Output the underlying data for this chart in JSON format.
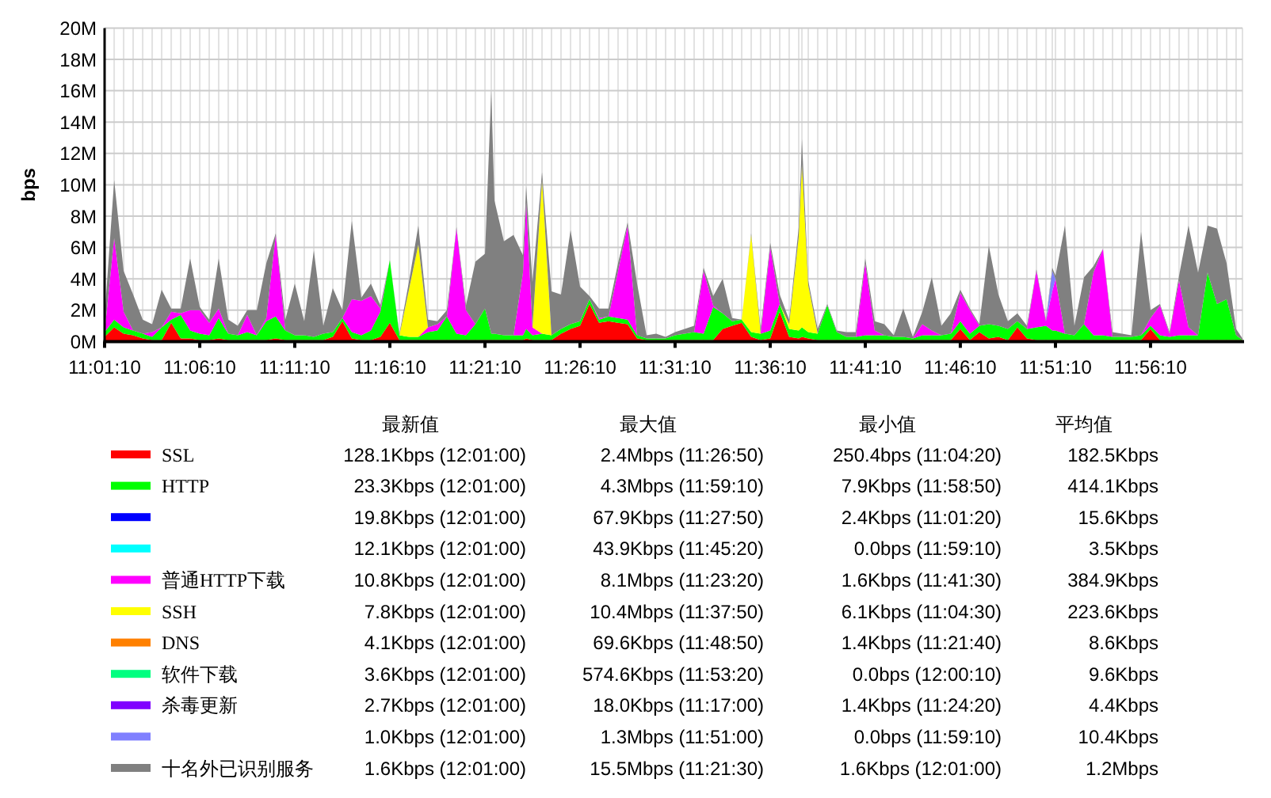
{
  "chart_data": {
    "type": "area",
    "stacked": true,
    "ylabel": "bps",
    "grid": true,
    "legend": "bottom",
    "xlim": [
      11.0194,
      12.0167
    ],
    "xticks": [
      {
        "value": 11.0194,
        "label": "11:01:10"
      },
      {
        "value": 11.1028,
        "label": "11:06:10"
      },
      {
        "value": 11.1861,
        "label": "11:11:10"
      },
      {
        "value": 11.2694,
        "label": "11:16:10"
      },
      {
        "value": 11.3528,
        "label": "11:21:10"
      },
      {
        "value": 11.4361,
        "label": "11:26:10"
      },
      {
        "value": 11.5194,
        "label": "11:31:10"
      },
      {
        "value": 11.6028,
        "label": "11:36:10"
      },
      {
        "value": 11.6861,
        "label": "11:41:10"
      },
      {
        "value": 11.7694,
        "label": "11:46:10"
      },
      {
        "value": 11.8528,
        "label": "11:51:10"
      },
      {
        "value": 11.9361,
        "label": "11:56:10"
      }
    ],
    "ylim": [
      0,
      20
    ],
    "yticks": [
      {
        "value": 0,
        "label": "0M"
      },
      {
        "value": 2,
        "label": "2M"
      },
      {
        "value": 4,
        "label": "4M"
      },
      {
        "value": 6,
        "label": "6M"
      },
      {
        "value": 8,
        "label": "8M"
      },
      {
        "value": 10,
        "label": "10M"
      },
      {
        "value": 12,
        "label": "12M"
      },
      {
        "value": 14,
        "label": "14M"
      },
      {
        "value": 16,
        "label": "16M"
      },
      {
        "value": 18,
        "label": "18M"
      },
      {
        "value": 20,
        "label": "20M"
      }
    ],
    "x": [
      11.0194,
      11.0278,
      11.0361,
      11.0444,
      11.0528,
      11.0611,
      11.0694,
      11.0778,
      11.0861,
      11.0944,
      11.1028,
      11.1111,
      11.1194,
      11.1278,
      11.1361,
      11.1444,
      11.1528,
      11.1611,
      11.1694,
      11.1778,
      11.1861,
      11.1944,
      11.2028,
      11.2111,
      11.2194,
      11.2278,
      11.2361,
      11.2444,
      11.2528,
      11.2611,
      11.2694,
      11.2778,
      11.2861,
      11.2944,
      11.3028,
      11.3111,
      11.3194,
      11.3278,
      11.3361,
      11.3444,
      11.3528,
      11.3583,
      11.3611,
      11.3694,
      11.3778,
      11.3861,
      11.3889,
      11.3944,
      11.4028,
      11.4111,
      11.4194,
      11.4278,
      11.4361,
      11.4444,
      11.4528,
      11.4611,
      11.4694,
      11.4778,
      11.4861,
      11.4944,
      11.5028,
      11.5111,
      11.5194,
      11.5278,
      11.5361,
      11.5444,
      11.5528,
      11.5611,
      11.5694,
      11.5778,
      11.5861,
      11.5944,
      11.6028,
      11.6111,
      11.6194,
      11.6278,
      11.6306,
      11.6361,
      11.6444,
      11.6528,
      11.6611,
      11.6694,
      11.6778,
      11.6861,
      11.6944,
      11.7028,
      11.7111,
      11.7194,
      11.7278,
      11.7361,
      11.7444,
      11.7528,
      11.7611,
      11.7694,
      11.7778,
      11.7861,
      11.7944,
      11.8028,
      11.8111,
      11.8194,
      11.8278,
      11.8361,
      11.8444,
      11.85,
      11.8528,
      11.8611,
      11.8694,
      11.8778,
      11.8861,
      11.8944,
      11.9028,
      11.9111,
      11.9194,
      11.9278,
      11.9361,
      11.9444,
      11.9528,
      11.9611,
      11.9694,
      11.9778,
      11.9861,
      11.9944,
      12.0028,
      12.0111,
      12.0167
    ],
    "series": [
      {
        "name": "SSL",
        "color": "#ff0000",
        "values": [
          0.3,
          0.9,
          0.5,
          0.4,
          0.2,
          0.1,
          0.1,
          1.2,
          0.2,
          0.2,
          0.1,
          0.1,
          0.2,
          0.1,
          0.1,
          0.1,
          0.1,
          0.1,
          0.2,
          0.1,
          0.1,
          0.1,
          0.1,
          0.1,
          0.3,
          1.3,
          0.2,
          0.1,
          0.1,
          0.3,
          1.2,
          0.1,
          0.1,
          0.1,
          0.1,
          0.1,
          0.1,
          0.1,
          0.1,
          0.1,
          0.1,
          0.1,
          0.1,
          0.1,
          0.1,
          0.1,
          0.2,
          0.1,
          0.1,
          0.1,
          0.5,
          0.8,
          1.0,
          2.4,
          1.2,
          1.3,
          1.2,
          1.1,
          0.2,
          0.1,
          0.1,
          0.1,
          0.1,
          0.1,
          0.1,
          0.1,
          0.1,
          0.8,
          1.0,
          1.2,
          0.3,
          0.1,
          0.2,
          1.9,
          0.3,
          0.2,
          0.3,
          0.2,
          0.1,
          0.1,
          0.1,
          0.1,
          0.1,
          0.1,
          0.1,
          0.1,
          0.1,
          0.1,
          0.1,
          0.1,
          0.1,
          0.1,
          0.1,
          0.8,
          0.1,
          0.6,
          0.2,
          0.3,
          0.1,
          0.9,
          0.2,
          0.1,
          0.1,
          0.1,
          0.1,
          0.1,
          0.1,
          0.1,
          0.1,
          0.1,
          0.1,
          0.1,
          0.1,
          0.1,
          0.8,
          0.1,
          0.1,
          0.1,
          0.1,
          0.1,
          0.1,
          0.1,
          0.1,
          0.1,
          0.1
        ]
      },
      {
        "name": "HTTP",
        "color": "#00ff00",
        "values": [
          0.3,
          0.5,
          0.4,
          0.3,
          0.3,
          0.2,
          0.8,
          0.2,
          1.5,
          0.5,
          0.4,
          0.3,
          1.3,
          0.4,
          0.3,
          0.5,
          0.3,
          1.2,
          1.4,
          0.6,
          0.3,
          0.3,
          0.2,
          0.4,
          0.3,
          0.2,
          0.4,
          0.3,
          0.6,
          1.6,
          4.0,
          0.3,
          0.2,
          0.2,
          0.5,
          0.6,
          1.5,
          0.4,
          0.3,
          1.0,
          2.0,
          0.4,
          0.4,
          0.3,
          0.3,
          0.3,
          0.6,
          0.3,
          0.4,
          0.3,
          0.3,
          0.3,
          0.3,
          0.3,
          0.2,
          0.3,
          0.3,
          0.3,
          0.2,
          0.1,
          0.1,
          0.1,
          0.3,
          0.4,
          0.5,
          0.4,
          2.1,
          1.0,
          0.3,
          0.2,
          0.3,
          0.4,
          0.5,
          0.5,
          0.5,
          0.5,
          0.6,
          0.4,
          0.4,
          2.2,
          0.5,
          0.2,
          0.2,
          0.3,
          0.3,
          0.3,
          0.2,
          0.2,
          0.1,
          0.3,
          0.3,
          0.3,
          0.4,
          0.5,
          0.4,
          0.4,
          0.9,
          0.7,
          0.7,
          0.4,
          0.6,
          0.8,
          0.9,
          0.6,
          0.6,
          0.4,
          0.3,
          1.0,
          0.3,
          0.3,
          0.2,
          0.2,
          0.2,
          0.3,
          0.2,
          0.3,
          0.2,
          0.3,
          0.3,
          0.3,
          4.3,
          2.3,
          2.6,
          0.3,
          0
        ]
      },
      {
        "color": "#0000ff",
        "values": [
          null,
          null,
          null,
          null,
          null,
          null,
          null,
          null,
          null,
          null,
          null,
          null,
          null,
          null,
          null,
          null,
          null,
          null,
          null,
          null,
          null,
          null,
          null,
          null,
          null,
          null,
          null,
          null,
          null,
          null,
          null,
          null,
          null,
          null,
          null,
          null,
          null,
          null,
          null,
          null,
          null,
          null,
          null,
          null,
          null,
          null,
          null,
          null,
          null,
          null,
          null,
          null,
          null,
          null,
          null,
          null,
          null,
          null,
          null,
          null,
          null,
          null,
          null,
          null,
          null,
          null,
          null,
          null,
          null,
          null,
          null,
          null,
          null,
          null,
          null,
          null,
          null,
          null,
          null,
          null,
          null,
          null,
          null,
          null,
          null,
          null,
          null,
          null,
          null,
          null,
          null,
          null,
          null,
          null,
          null,
          null,
          null,
          null,
          null,
          null,
          null,
          null,
          null,
          null,
          null,
          null,
          null,
          null,
          null,
          null,
          null,
          null,
          null,
          null,
          null,
          null,
          null,
          null,
          null,
          null,
          null,
          null,
          null,
          null,
          null
        ]
      },
      {
        "color": "#00ffff",
        "values": [
          null,
          null,
          null,
          null,
          null,
          null,
          null,
          null,
          null,
          null,
          null,
          null,
          null,
          null,
          null,
          null,
          null,
          null,
          null,
          null,
          null,
          null,
          null,
          null,
          null,
          null,
          null,
          null,
          null,
          null,
          null,
          null,
          null,
          null,
          null,
          null,
          null,
          null,
          null,
          null,
          null,
          null,
          null,
          null,
          null,
          null,
          null,
          null,
          null,
          null,
          null,
          null,
          null,
          null,
          null,
          null,
          null,
          null,
          null,
          null,
          null,
          null,
          null,
          null,
          null,
          null,
          null,
          null,
          null,
          null,
          null,
          null,
          null,
          null,
          null,
          null,
          null,
          null,
          null,
          null,
          null,
          null,
          null,
          null,
          null,
          null,
          null,
          null,
          null,
          null,
          null,
          null,
          null,
          null,
          null,
          null,
          null,
          null,
          null,
          null,
          null,
          null,
          null,
          null,
          null,
          null,
          null,
          null,
          null,
          null,
          null,
          null,
          null,
          null,
          null,
          null,
          null,
          null,
          null,
          null,
          null,
          null,
          null,
          null,
          null
        ]
      },
      {
        "name": "普通HTTP下载",
        "color": "#ff00ff",
        "values": [
          0,
          5.2,
          1.0,
          0,
          0,
          0.3,
          0,
          0.5,
          0.1,
          1.3,
          1.5,
          0.8,
          0.6,
          0,
          0,
          1.1,
          0,
          0.2,
          5.2,
          0,
          0,
          0,
          0,
          0,
          0,
          0,
          2.1,
          2.2,
          2.2,
          0.2,
          0,
          0,
          0,
          0,
          0.3,
          0.4,
          0,
          6.7,
          1.6,
          0,
          0,
          0,
          0,
          0,
          0,
          4.0,
          8.1,
          0.5,
          0,
          0,
          0,
          0,
          0,
          0,
          0.1,
          0,
          3.0,
          6.0,
          0,
          0,
          0,
          0,
          0,
          0,
          0,
          4.0,
          0.1,
          0,
          0,
          0,
          0,
          0,
          5.3,
          0,
          0,
          0,
          0,
          0,
          0,
          0,
          0,
          0,
          0,
          4.6,
          0.3,
          0,
          0,
          0,
          0,
          0.7,
          0.3,
          0,
          0,
          1.8,
          1.5,
          0,
          0,
          0,
          0,
          0,
          0,
          3.6,
          0.3,
          2.5,
          3.3,
          0,
          0,
          0,
          4.0,
          5.5,
          0,
          0,
          0,
          0,
          0.5,
          1.9,
          0.2,
          3.5,
          0.5,
          0,
          0,
          0,
          0,
          0,
          0
        ]
      },
      {
        "name": "SSH",
        "color": "#ffff00",
        "values": [
          0,
          0,
          0,
          0,
          0,
          0,
          0,
          0,
          0,
          0,
          0,
          0,
          0,
          0,
          0,
          0,
          0,
          0,
          0,
          0,
          0,
          0,
          0,
          0,
          0,
          0,
          0,
          0,
          0,
          0,
          0,
          0,
          3.0,
          5.9,
          0,
          0,
          0,
          0,
          0,
          0,
          0,
          0,
          0,
          0,
          0,
          0,
          0,
          0,
          9.8,
          0,
          0,
          0,
          0,
          0,
          0,
          0,
          0,
          0,
          0,
          0,
          0,
          0,
          0,
          0,
          0,
          0,
          0,
          0,
          0,
          0,
          6.2,
          0,
          0,
          0,
          0.3,
          6.0,
          10.4,
          3.0,
          0,
          0,
          0,
          0,
          0,
          0,
          0,
          0,
          0,
          0,
          0,
          0,
          0,
          0,
          0,
          0,
          0,
          0,
          0,
          0,
          0,
          0,
          0,
          0,
          0,
          0,
          0,
          0,
          0,
          0,
          0,
          0,
          0,
          0,
          0,
          0,
          0,
          0,
          0,
          0,
          0,
          0,
          0,
          0,
          0,
          0,
          0
        ]
      },
      {
        "name": "DNS",
        "color": "#ff8000",
        "values": [
          null,
          null,
          null,
          null,
          null,
          null,
          null,
          null,
          null,
          null,
          null,
          null,
          null,
          null,
          null,
          null,
          null,
          null,
          null,
          null,
          null,
          null,
          null,
          null,
          null,
          null,
          null,
          null,
          null,
          null,
          null,
          null,
          null,
          null,
          null,
          null,
          null,
          null,
          null,
          null,
          null,
          null,
          null,
          null,
          null,
          null,
          null,
          null,
          null,
          null,
          null,
          null,
          null,
          null,
          null,
          null,
          null,
          null,
          null,
          null,
          null,
          null,
          null,
          null,
          null,
          null,
          null,
          null,
          null,
          null,
          null,
          null,
          null,
          null,
          null,
          null,
          null,
          null,
          null,
          null,
          null,
          null,
          null,
          null,
          null,
          null,
          null,
          null,
          null,
          null,
          null,
          null,
          null,
          null,
          null,
          null,
          null,
          null,
          null,
          null,
          null,
          null,
          null,
          null,
          null,
          null,
          null,
          null,
          null,
          null,
          null,
          null,
          null,
          null,
          null,
          null,
          null,
          null,
          null,
          null,
          null,
          null,
          null,
          null,
          null
        ]
      },
      {
        "name": "软件下载",
        "color": "#00ff80",
        "values": [
          null,
          null,
          null,
          null,
          null,
          null,
          null,
          null,
          null,
          null,
          null,
          null,
          null,
          null,
          null,
          null,
          null,
          null,
          null,
          null,
          null,
          null,
          null,
          null,
          null,
          null,
          null,
          null,
          null,
          null,
          null,
          null,
          null,
          null,
          null,
          null,
          null,
          null,
          null,
          null,
          null,
          null,
          null,
          null,
          null,
          null,
          null,
          null,
          null,
          null,
          null,
          null,
          null,
          null,
          null,
          null,
          null,
          null,
          null,
          null,
          null,
          null,
          null,
          null,
          null,
          null,
          null,
          null,
          null,
          null,
          null,
          null,
          null,
          null,
          null,
          null,
          null,
          null,
          null,
          null,
          null,
          null,
          null,
          null,
          null,
          null,
          null,
          null,
          null,
          null,
          null,
          null,
          null,
          null,
          null,
          null,
          null,
          null,
          null,
          null,
          null,
          null,
          null,
          null,
          null,
          null,
          null,
          null,
          null,
          null,
          null,
          null,
          null,
          null,
          null,
          null,
          null,
          null,
          null,
          null,
          null,
          null,
          null,
          null,
          null
        ]
      },
      {
        "name": "杀毒更新",
        "color": "#8000ff",
        "values": [
          null,
          null,
          null,
          null,
          null,
          null,
          null,
          null,
          null,
          null,
          null,
          null,
          null,
          null,
          null,
          null,
          null,
          null,
          null,
          null,
          null,
          null,
          null,
          null,
          null,
          null,
          null,
          null,
          null,
          null,
          null,
          null,
          null,
          null,
          null,
          null,
          null,
          null,
          null,
          null,
          null,
          null,
          null,
          null,
          null,
          null,
          null,
          null,
          null,
          null,
          null,
          null,
          null,
          null,
          null,
          null,
          null,
          null,
          null,
          null,
          null,
          null,
          null,
          null,
          null,
          null,
          null,
          null,
          null,
          null,
          null,
          null,
          null,
          null,
          null,
          null,
          null,
          null,
          null,
          null,
          null,
          null,
          null,
          null,
          null,
          null,
          null,
          null,
          null,
          null,
          null,
          null,
          null,
          null,
          null,
          null,
          null,
          null,
          null,
          null,
          null,
          null,
          null,
          null,
          null,
          null,
          null,
          null,
          null,
          null,
          null,
          null,
          null,
          null,
          null,
          null,
          null,
          null,
          null,
          null,
          null,
          null,
          null,
          null,
          null
        ]
      },
      {
        "color": "#8080ff",
        "values": [
          null,
          null,
          null,
          null,
          null,
          null,
          null,
          null,
          null,
          null,
          null,
          null,
          null,
          null,
          null,
          null,
          null,
          null,
          null,
          null,
          null,
          null,
          null,
          null,
          null,
          null,
          null,
          null,
          null,
          null,
          null,
          null,
          null,
          null,
          null,
          null,
          null,
          null,
          null,
          null,
          null,
          null,
          null,
          null,
          null,
          null,
          null,
          null,
          null,
          null,
          null,
          null,
          null,
          null,
          null,
          null,
          null,
          null,
          null,
          null,
          null,
          null,
          null,
          null,
          null,
          null,
          null,
          null,
          null,
          null,
          null,
          null,
          null,
          null,
          null,
          null,
          null,
          null,
          null,
          null,
          null,
          null,
          null,
          null,
          null,
          null,
          null,
          null,
          null,
          null,
          null,
          null,
          null,
          null,
          null,
          null,
          null,
          null,
          null,
          null,
          null,
          null,
          0,
          1.3,
          0,
          null,
          null,
          null,
          null,
          null,
          null,
          null,
          null,
          null,
          null,
          null,
          null,
          null,
          null,
          null,
          null,
          null,
          null,
          null,
          null
        ]
      },
      {
        "name": "十名外已识别服务",
        "color": "#808080",
        "values": [
          1.0,
          3.7,
          2.6,
          2.3,
          0.9,
          0.5,
          2.4,
          0.2,
          0.3,
          3.3,
          0.2,
          0.2,
          3.2,
          0.9,
          0.6,
          0.3,
          1.6,
          3.5,
          0.1,
          0.7,
          3.3,
          0.9,
          5.5,
          0.5,
          2.8,
          0.5,
          5.0,
          0.2,
          0.8,
          0.2,
          0,
          0.1,
          0.5,
          1.2,
          0.5,
          0.2,
          0.4,
          0.1,
          0.3,
          4.0,
          3.5,
          15.5,
          8.5,
          6.0,
          6.4,
          1.1,
          1.0,
          2.9,
          0.5,
          2.8,
          2.2,
          6.0,
          2.2,
          0.2,
          0.6,
          0.5,
          0.5,
          0.2,
          3.3,
          0.2,
          0.3,
          0.1,
          0.2,
          0.3,
          0.4,
          0.2,
          0.6,
          2.2,
          0.2,
          0,
          0.1,
          0.3,
          0.3,
          0.6,
          0.3,
          0.6,
          1.6,
          0.3,
          0.3,
          0.1,
          0.1,
          0.3,
          0.3,
          0.3,
          0.6,
          0.7,
          0.1,
          1.8,
          0.1,
          0.8,
          3.4,
          0.6,
          1.3,
          0.2,
          0.1,
          0.1,
          5.0,
          2.0,
          0.5,
          0.5,
          0.2,
          0.1,
          0.1,
          0.2,
          0.2,
          6.9,
          0.6,
          3.0,
          0.4,
          0,
          0.3,
          0.2,
          0.1,
          6.6,
          0.5,
          0.1,
          0.1,
          0.3,
          6.5,
          4.0,
          3.0,
          4.8,
          2.3,
          0.4,
          0.1
        ]
      }
    ],
    "annotations": [
      "最新值",
      "最大值",
      "最小值",
      "平均值",
      "128.1Kbps (12:01:00)",
      "2.4Mbps (11:26:50)",
      "250.4bps (11:04:20)",
      "182.5Kbps",
      "23.3Kbps (12:01:00)",
      "4.3Mbps (11:59:10)",
      "7.9Kbps (11:58:50)",
      "414.1Kbps",
      "19.8Kbps (12:01:00)",
      "67.9Kbps (11:27:50)",
      "2.4Kbps (11:01:20)",
      "15.6Kbps",
      "12.1Kbps (12:01:00)",
      "43.9Kbps (11:45:20)",
      "0.0bps (11:59:10)",
      "3.5Kbps",
      "10.8Kbps (12:01:00)",
      "8.1Mbps (11:23:20)",
      "1.6Kbps (11:41:30)",
      "384.9Kbps",
      "7.8Kbps (12:01:00)",
      "10.4Mbps (11:37:50)",
      "6.1Kbps (11:04:30)",
      "223.6Kbps",
      "4.1Kbps (12:01:00)",
      "69.6Kbps (11:48:50)",
      "1.4Kbps (11:21:40)",
      "8.6Kbps",
      "3.6Kbps (12:01:00)",
      "574.6Kbps (11:53:20)",
      "0.0bps (12:00:10)",
      "9.6Kbps",
      "2.7Kbps (12:01:00)",
      "18.0Kbps (11:17:00)",
      "1.4Kbps (11:24:20)",
      "4.4Kbps",
      "1.0Kbps (12:01:00)",
      "1.3Mbps (11:51:00)",
      "0.0bps (11:59:10)",
      "10.4Kbps",
      "1.6Kbps (12:01:00)",
      "15.5Mbps (11:21:30)",
      "1.6Kbps (12:01:00)",
      "1.2Mbps"
    ]
  }
}
